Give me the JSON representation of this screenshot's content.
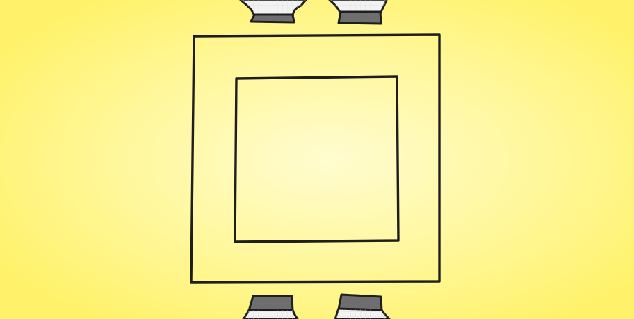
{
  "scene": {
    "name": "sketch-room-board",
    "colors": {
      "background_center": "#FFFCD0",
      "background_mid": "#FFF79A",
      "background_edge": "#FFF26A",
      "outline": "#1E1E1E",
      "cup_rim": "#F2F2F2",
      "cup_body": "#6E6E6E",
      "grid_line": "#D6D6D6"
    },
    "frames": [
      {
        "name": "outer-frame"
      },
      {
        "name": "inner-frame"
      }
    ],
    "pieces": [
      {
        "name": "cup-piece-top-left",
        "side": "top"
      },
      {
        "name": "cup-piece-top-right",
        "side": "top"
      },
      {
        "name": "cup-piece-bottom-left",
        "side": "bottom"
      },
      {
        "name": "cup-piece-bottom-right",
        "side": "bottom"
      }
    ]
  }
}
